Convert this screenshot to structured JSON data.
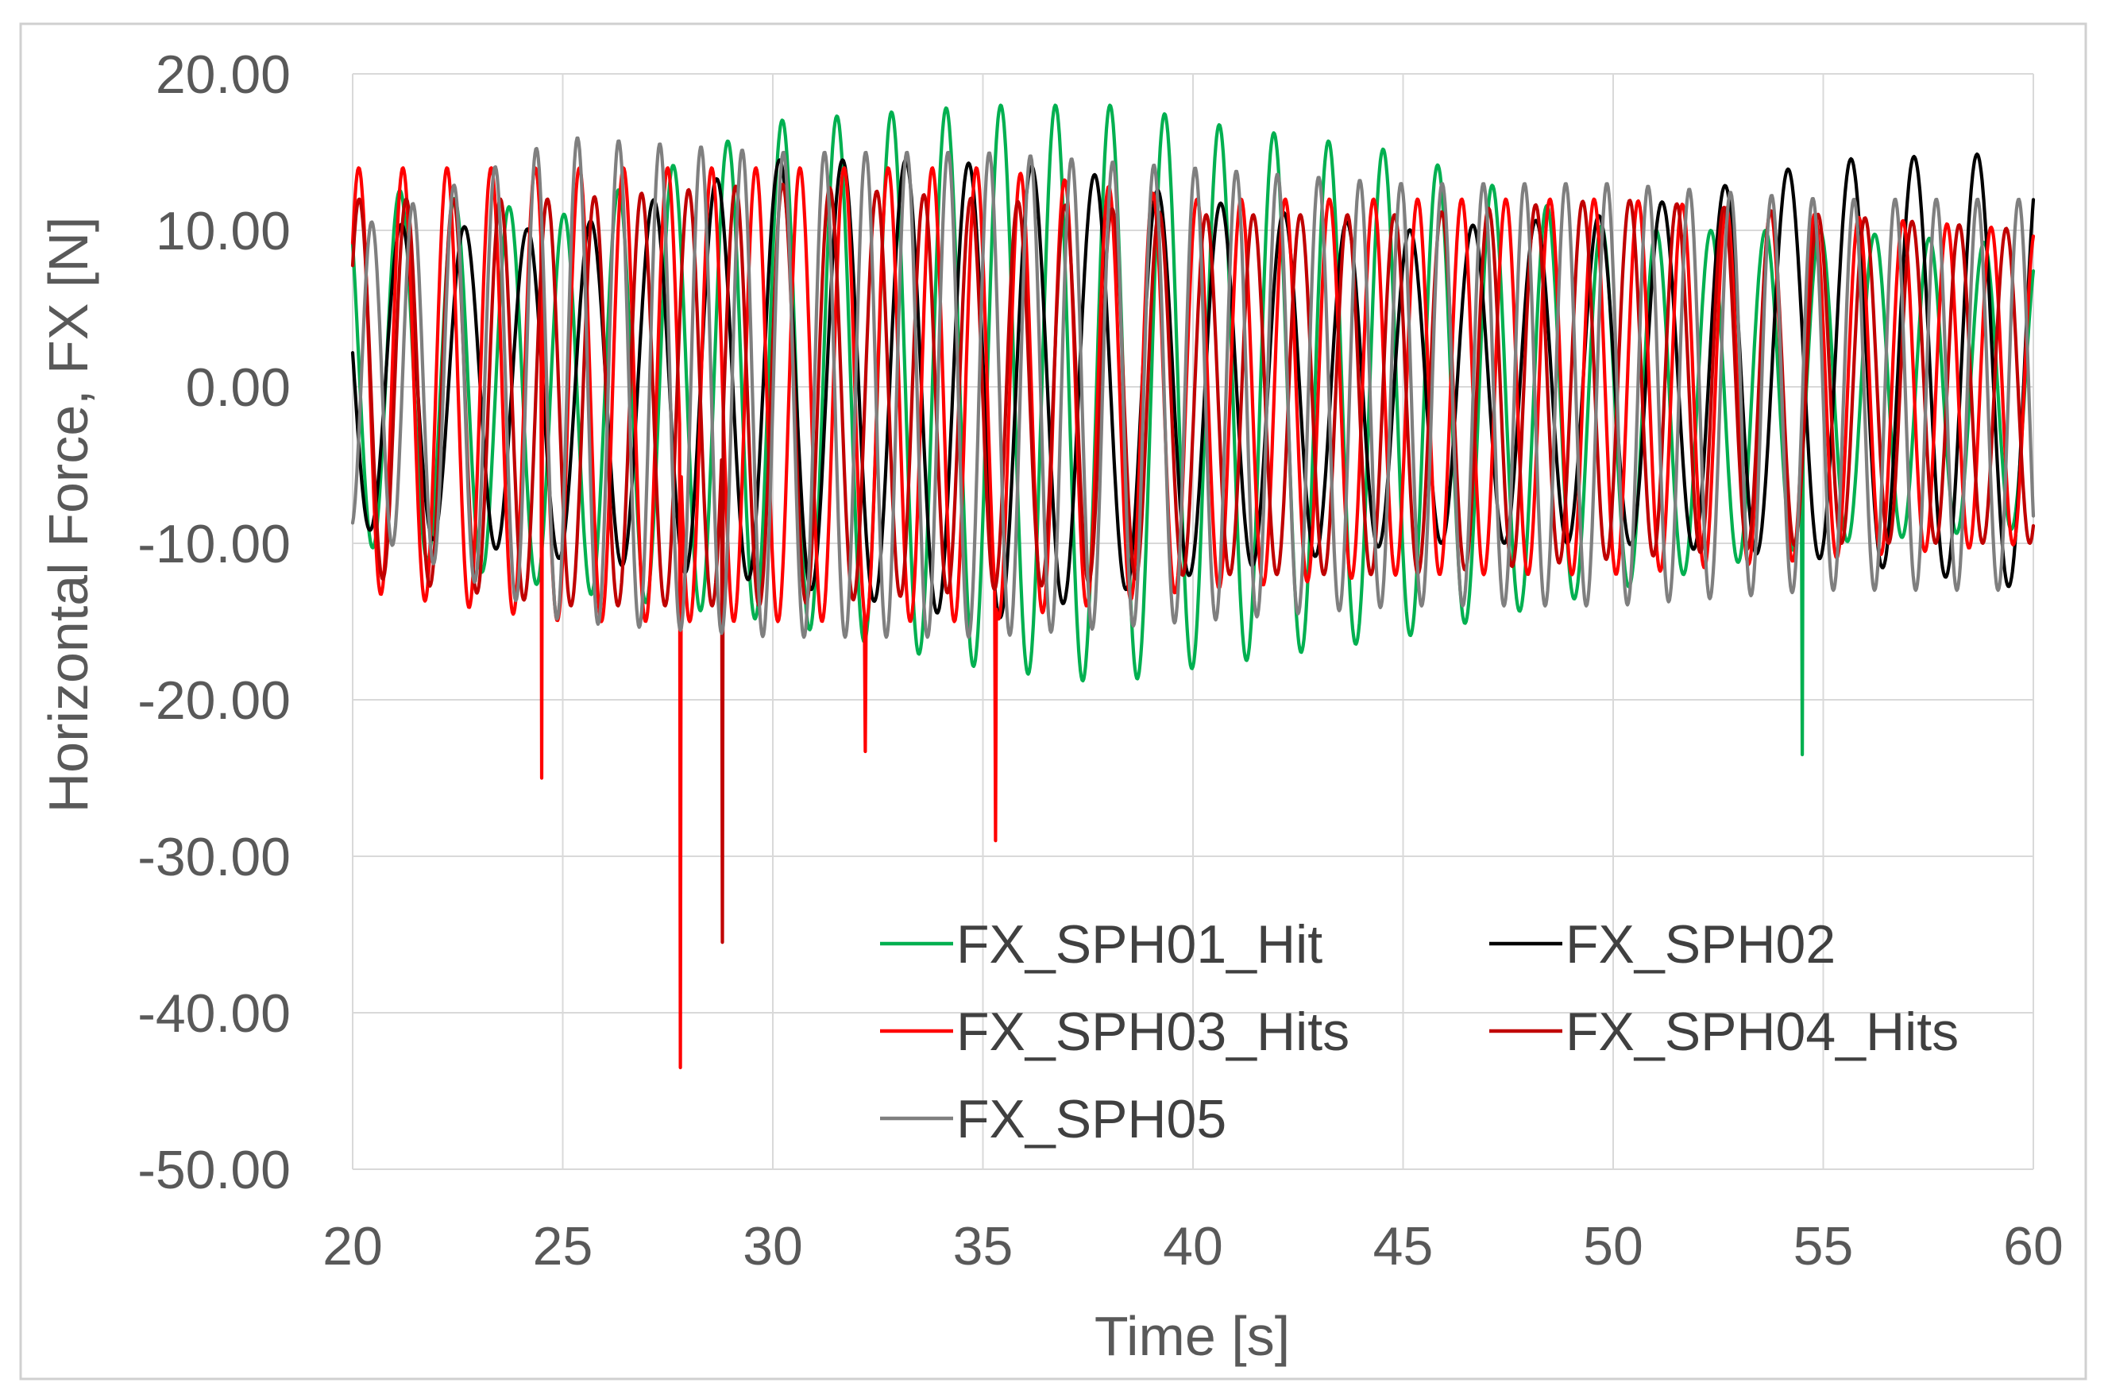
{
  "chart_data": {
    "type": "line",
    "title": "",
    "xlabel": "Time [s]",
    "ylabel": "Horizontal Force, FX [N]",
    "xlim": [
      20,
      60
    ],
    "ylim": [
      -50,
      20
    ],
    "x_ticks": [
      "20",
      "25",
      "30",
      "35",
      "40",
      "45",
      "50",
      "55",
      "60"
    ],
    "y_ticks": [
      "20.00",
      "10.00",
      "0.00",
      "-10.00",
      "-20.00",
      "-30.00",
      "-40.00",
      "-50.00"
    ],
    "grid": true,
    "legend_position": "bottom-right inside plot",
    "series": [
      {
        "name": "FX_SPH01_Hit",
        "color": "#00b050",
        "keypoints": [
          [
            20,
            13
          ],
          [
            25,
            11
          ],
          [
            30,
            17
          ],
          [
            35,
            18
          ],
          [
            38.5,
            18
          ],
          [
            40,
            17
          ],
          [
            45,
            15
          ],
          [
            50,
            10
          ],
          [
            55,
            10
          ],
          [
            60,
            9
          ]
        ],
        "troughs": [
          [
            20,
            -10
          ],
          [
            25,
            -13
          ],
          [
            30,
            -15
          ],
          [
            35,
            -18
          ],
          [
            38,
            -19
          ],
          [
            40,
            -18
          ],
          [
            45,
            -16
          ],
          [
            50,
            -13
          ],
          [
            55,
            -10
          ],
          [
            60,
            -9
          ]
        ],
        "period": 1.3,
        "phase": 0.0,
        "spikes": [
          [
            54.5,
            -23.5
          ]
        ]
      },
      {
        "name": "FX_SPH02",
        "color": "#000000",
        "keypoints": [
          [
            20,
            10.5
          ],
          [
            25,
            10
          ],
          [
            30,
            14.5
          ],
          [
            33,
            14.5
          ],
          [
            37,
            14
          ],
          [
            40,
            12
          ],
          [
            45,
            10
          ],
          [
            50,
            11
          ],
          [
            55,
            14.5
          ],
          [
            60,
            15
          ]
        ],
        "troughs": [
          [
            20,
            -9
          ],
          [
            25,
            -11
          ],
          [
            30,
            -12.5
          ],
          [
            35,
            -15
          ],
          [
            40,
            -12
          ],
          [
            45,
            -10
          ],
          [
            50,
            -10
          ],
          [
            55,
            -11
          ],
          [
            60,
            -13
          ]
        ],
        "period": 1.5,
        "phase": 0.9,
        "spikes": []
      },
      {
        "name": "FX_SPH03_Hits",
        "color": "#ff0000",
        "keypoints": [
          [
            20,
            14
          ],
          [
            25,
            14
          ],
          [
            30,
            14
          ],
          [
            35,
            14
          ],
          [
            40,
            12
          ],
          [
            45,
            12
          ],
          [
            50,
            12
          ],
          [
            55,
            11
          ],
          [
            60,
            10
          ]
        ],
        "troughs": [
          [
            20,
            -13
          ],
          [
            25,
            -15
          ],
          [
            30,
            -15
          ],
          [
            35,
            -15
          ],
          [
            40,
            -13
          ],
          [
            45,
            -12
          ],
          [
            50,
            -12
          ],
          [
            55,
            -11
          ],
          [
            60,
            -10
          ]
        ],
        "period": 1.05,
        "phase": 0.4,
        "spikes": [
          [
            24.5,
            -25
          ],
          [
            27.8,
            -43.5
          ],
          [
            32.2,
            -23.3
          ],
          [
            35.3,
            -29
          ]
        ]
      },
      {
        "name": "FX_SPH04_Hits",
        "color": "#c00000",
        "keypoints": [
          [
            20,
            12
          ],
          [
            25,
            12
          ],
          [
            30,
            13
          ],
          [
            35,
            12
          ],
          [
            40,
            11
          ],
          [
            45,
            11
          ],
          [
            50,
            12
          ],
          [
            55,
            11
          ],
          [
            60,
            10
          ]
        ],
        "troughs": [
          [
            20,
            -12
          ],
          [
            25,
            -14
          ],
          [
            30,
            -14
          ],
          [
            35,
            -13
          ],
          [
            40,
            -12
          ],
          [
            45,
            -12
          ],
          [
            50,
            -11
          ],
          [
            55,
            -10
          ],
          [
            60,
            -10
          ]
        ],
        "period": 1.12,
        "phase": 1.6,
        "spikes": [
          [
            28.8,
            -35.5
          ]
        ]
      },
      {
        "name": "FX_SPH05",
        "color": "#7f7f7f",
        "keypoints": [
          [
            20,
            10
          ],
          [
            25,
            16
          ],
          [
            30,
            15
          ],
          [
            35,
            15
          ],
          [
            40,
            14
          ],
          [
            45,
            13
          ],
          [
            50,
            13
          ],
          [
            55,
            12
          ],
          [
            60,
            12
          ]
        ],
        "troughs": [
          [
            20,
            -9
          ],
          [
            25,
            -15
          ],
          [
            30,
            -16
          ],
          [
            35,
            -16
          ],
          [
            40,
            -15
          ],
          [
            45,
            -14
          ],
          [
            50,
            -14
          ],
          [
            55,
            -13
          ],
          [
            60,
            -13
          ]
        ],
        "period": 0.98,
        "phase": 2.4,
        "spikes": []
      }
    ]
  }
}
